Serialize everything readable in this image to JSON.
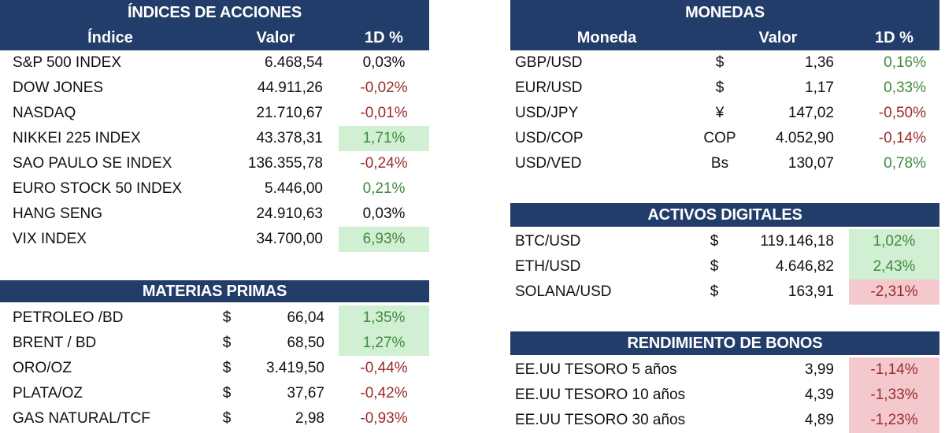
{
  "indices": {
    "title": "ÍNDICES DE ACCIONES",
    "headers": {
      "name": "Índice",
      "value": "Valor",
      "change": "1D %"
    },
    "rows": [
      {
        "name": "S&P 500 INDEX",
        "value": "6.468,54",
        "change": "0,03%",
        "tone": "neu",
        "highlight": ""
      },
      {
        "name": "DOW JONES",
        "value": "44.911,26",
        "change": "-0,02%",
        "tone": "neg",
        "highlight": ""
      },
      {
        "name": "NASDAQ",
        "value": "21.710,67",
        "change": "-0,01%",
        "tone": "neg",
        "highlight": ""
      },
      {
        "name": "NIKKEI 225 INDEX",
        "value": "43.378,31",
        "change": "1,71%",
        "tone": "pos",
        "highlight": "green"
      },
      {
        "name": "SAO PAULO SE INDEX",
        "value": "136.355,78",
        "change": "-0,24%",
        "tone": "neg",
        "highlight": ""
      },
      {
        "name": "EURO STOCK 50 INDEX",
        "value": "5.446,00",
        "change": "0,21%",
        "tone": "pos",
        "highlight": ""
      },
      {
        "name": "HANG SENG",
        "value": "24.910,63",
        "change": "0,03%",
        "tone": "neu",
        "highlight": ""
      },
      {
        "name": "VIX INDEX",
        "value": "34.700,00",
        "change": "6,93%",
        "tone": "pos",
        "highlight": "green"
      }
    ]
  },
  "commodities": {
    "title": "MATERIAS PRIMAS",
    "rows": [
      {
        "name": "PETROLEO /BD",
        "symbol": "$",
        "value": "66,04",
        "change": "1,35%",
        "tone": "pos",
        "highlight": "green"
      },
      {
        "name": "BRENT / BD",
        "symbol": "$",
        "value": "68,50",
        "change": "1,27%",
        "tone": "pos",
        "highlight": "green"
      },
      {
        "name": "ORO/OZ",
        "symbol": "$",
        "value": "3.419,50",
        "change": "-0,44%",
        "tone": "neg",
        "highlight": ""
      },
      {
        "name": "PLATA/OZ",
        "symbol": "$",
        "value": "37,67",
        "change": "-0,42%",
        "tone": "neg",
        "highlight": ""
      },
      {
        "name": "GAS NATURAL/TCF",
        "symbol": "$",
        "value": "2,98",
        "change": "-0,93%",
        "tone": "neg",
        "highlight": ""
      }
    ]
  },
  "currencies": {
    "title": "MONEDAS",
    "headers": {
      "name": "Moneda",
      "value": "Valor",
      "change": "1D %"
    },
    "rows": [
      {
        "name": "GBP/USD",
        "symbol": "$",
        "value": "1,36",
        "change": "0,16%",
        "tone": "pos",
        "highlight": ""
      },
      {
        "name": "EUR/USD",
        "symbol": "$",
        "value": "1,17",
        "change": "0,33%",
        "tone": "pos",
        "highlight": ""
      },
      {
        "name": "USD/JPY",
        "symbol": "¥",
        "value": "147,02",
        "change": "-0,50%",
        "tone": "neg",
        "highlight": ""
      },
      {
        "name": "USD/COP",
        "symbol": "COP",
        "value": "4.052,90",
        "change": "-0,14%",
        "tone": "neg",
        "highlight": ""
      },
      {
        "name": "USD/VED",
        "symbol": "Bs",
        "value": "130,07",
        "change": "0,78%",
        "tone": "pos",
        "highlight": ""
      }
    ]
  },
  "digital": {
    "title": "ACTIVOS DIGITALES",
    "rows": [
      {
        "name": "BTC/USD",
        "symbol": "$",
        "value": "119.146,18",
        "change": "1,02%",
        "tone": "pos",
        "highlight": "green"
      },
      {
        "name": "ETH/USD",
        "symbol": "$",
        "value": "4.646,82",
        "change": "2,43%",
        "tone": "pos",
        "highlight": "green"
      },
      {
        "name": "SOLANA/USD",
        "symbol": "$",
        "value": "163,91",
        "change": "-2,31%",
        "tone": "neg",
        "highlight": "red"
      }
    ]
  },
  "bonds": {
    "title": "RENDIMIENTO DE BONOS",
    "rows": [
      {
        "name": "EE.UU TESORO 5 años",
        "value": "3,99",
        "change": "-1,14%",
        "tone": "neg",
        "highlight": "red"
      },
      {
        "name": "EE.UU TESORO 10 años",
        "value": "4,39",
        "change": "-1,33%",
        "tone": "neg",
        "highlight": "red"
      },
      {
        "name": "EE.UU TESORO 30 años",
        "value": "4,89",
        "change": "-1,23%",
        "tone": "neg",
        "highlight": "red"
      }
    ]
  }
}
